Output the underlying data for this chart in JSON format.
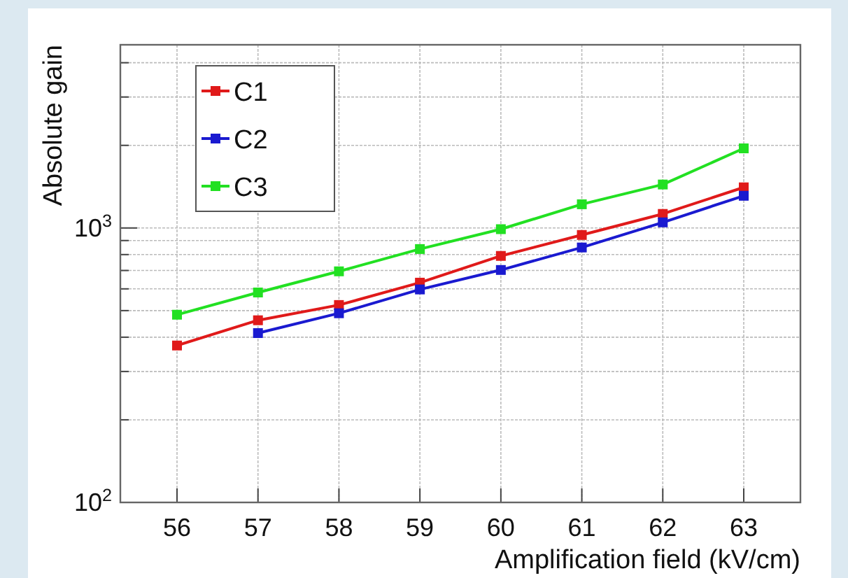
{
  "chart_data": {
    "type": "line",
    "xlabel": "Amplification field (kV/cm)",
    "ylabel": "Absolute gain",
    "x": [
      56,
      57,
      58,
      59,
      60,
      61,
      62,
      63
    ],
    "series": [
      {
        "name": "C1",
        "color": "#e01a1a",
        "values": [
          373,
          461,
          524,
          632,
          791,
          943,
          1125,
          1406
        ]
      },
      {
        "name": "C2",
        "color": "#1a1ad0",
        "values": [
          null,
          414,
          489,
          597,
          703,
          849,
          1048,
          1310
        ]
      },
      {
        "name": "C3",
        "color": "#22e022",
        "values": [
          483,
          582,
          695,
          838,
          990,
          1220,
          1440,
          1950
        ]
      }
    ],
    "xlim": [
      55.3,
      63.7
    ],
    "xticks": [
      56,
      57,
      58,
      59,
      60,
      61,
      62,
      63
    ],
    "ylim": [
      100,
      4650
    ],
    "yticks": [
      {
        "value": 100,
        "label": "10$^{2}$"
      },
      {
        "value": 200,
        "label": null
      },
      {
        "value": 300,
        "label": null
      },
      {
        "value": 400,
        "label": null
      },
      {
        "value": 500,
        "label": null
      },
      {
        "value": 600,
        "label": null
      },
      {
        "value": 700,
        "label": null
      },
      {
        "value": 800,
        "label": null
      },
      {
        "value": 900,
        "label": null
      },
      {
        "value": 1000,
        "label": "10$^{3}$"
      },
      {
        "value": 2000,
        "label": null
      },
      {
        "value": 3000,
        "label": null
      },
      {
        "value": 4000,
        "label": null
      }
    ],
    "log": true,
    "grid": true,
    "legend": "top left",
    "marker": "square",
    "line_style": "solid"
  }
}
